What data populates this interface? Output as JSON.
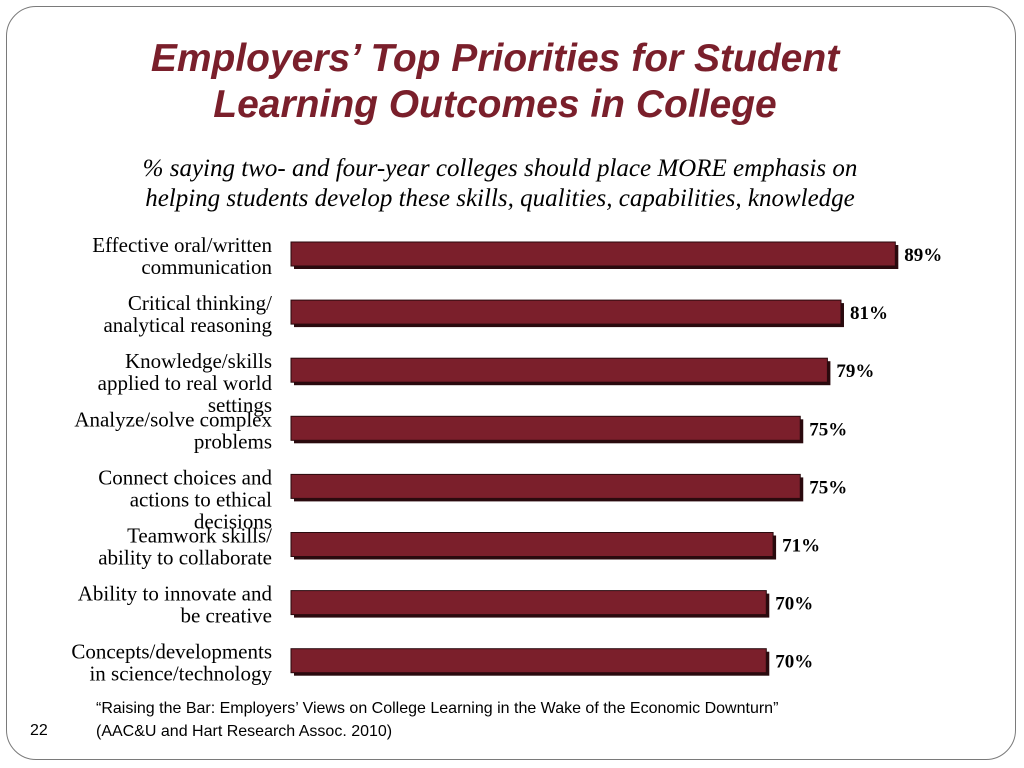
{
  "slide": {
    "title_line1": "Employers’ Top Priorities for Student",
    "title_line2": "Learning Outcomes in College",
    "subtitle_line1": "% saying two- and four-year colleges should place MORE emphasis on",
    "subtitle_line2": "helping students develop these skills, qualities, capabilities, knowledge",
    "source_line1": "“Raising the Bar: Employers’  Views on College Learning in the Wake of the Economic Downturn”",
    "source_line2": "(AAC&U and Hart Research Assoc. 2010)",
    "slide_number": "22"
  },
  "colors": {
    "title": "#7a1f2b",
    "bar_fill": "#7b1f2b",
    "bar_shadow": "#2a0a0e"
  },
  "chart_data": {
    "type": "bar",
    "orientation": "horizontal",
    "categories": [
      [
        "Effective oral/written",
        "communication"
      ],
      [
        "Critical thinking/",
        "analytical reasoning"
      ],
      [
        "Knowledge/skills",
        "applied to real world",
        "settings"
      ],
      [
        "Analyze/solve complex",
        "problems"
      ],
      [
        "Connect choices and",
        "actions to ethical",
        "decisions"
      ],
      [
        "Teamwork skills/",
        "ability to collaborate"
      ],
      [
        "Ability to innovate and",
        "be creative"
      ],
      [
        "Concepts/developments",
        "in science/technology"
      ]
    ],
    "values": [
      89,
      81,
      79,
      75,
      75,
      71,
      70,
      70
    ],
    "value_labels": [
      "89%",
      "81%",
      "79%",
      "75%",
      "75%",
      "71%",
      "70%",
      "70%"
    ],
    "unit": "%",
    "xlim": [
      0,
      100
    ],
    "grid": false,
    "legend": "none"
  }
}
